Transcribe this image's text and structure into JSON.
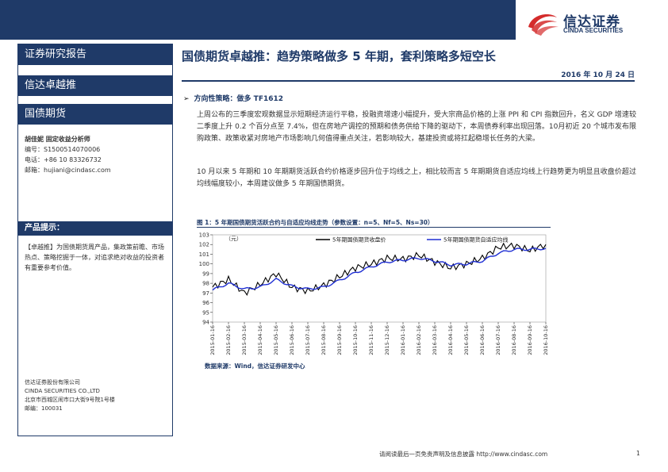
{
  "header": {
    "logo_cn": "信达证券",
    "logo_en": "CINDA SECURITIES",
    "colors": {
      "brand": "#1f3a68",
      "logo_red": "#d42b2b"
    }
  },
  "sidebar": {
    "report_type": "证券研究报告",
    "series": "信达卓越推",
    "category": "国债期货",
    "analyst_name": "胡佳妮  固定收益分析师",
    "analyst_id": "编号：S1500514070006",
    "analyst_phone": "电话：+86 10 83326732",
    "analyst_email": "邮箱：hujiani@cindasc.com",
    "tips_title": "产品提示：",
    "tips_body": "【卓越推】为国债期货周产品，集政策前瞻、市场热点、策略挖掘于一体，对追求绝对收益的投资者有重要参考价值。",
    "company_cn": "信达证券股份有限公司",
    "company_en": "CINDA SECURITIES CO.,LTD",
    "company_addr": "北京市西城区闹市口大街9号院1号楼",
    "company_zip": "邮编：100031"
  },
  "main": {
    "title": "国债期货卓越推：趋势策略做多 5 年期，套利策略多短空长",
    "date": "2016 年 10 月 24 日",
    "section_arrow": "➢",
    "section_title": "方向性策略：做多 TF1612",
    "para1": "上周公布的三季度宏观数据显示短期经济运行平稳，投融资增速小幅提升，受大宗商品价格的上涨 PPI 和 CPI 指数回升，名义 GDP 增速较二季度上升 0.2 个百分点至 7.4%，但在房地产调控的预期和债务供给下降的驱动下，本周债券利率出现回落。10月初近 20 个城市发布限购政策、政策收紧对房地产市场影响几何值得重点关注，若影响较大，基建投资或将扛起稳增长任务的大梁。",
    "para2": "10 月以来 5 年期和 10 年期期货活跃合约价格逐步回升位于均线之上，相比较而言 5 年期期货自适应均线上行趋势更为明显且收盘价超过均线幅度较小，本周建议做多 5 年期国债期货。",
    "figure_title": "图 1：5 年期国债期货活跃合约与自适应均线走势（参数设置：n=5、Nf=5、Ns=30）",
    "source": "数据来源：Wind，信达证券研发中心"
  },
  "footer": {
    "disclaimer": "请阅读最后一页免责声明及信息披露 http://www.cindasc.com",
    "page": "1"
  },
  "chart_data": {
    "type": "line",
    "ylabel": "（元）",
    "ylim": [
      94,
      103
    ],
    "yticks": [
      94,
      95,
      96,
      97,
      98,
      99,
      100,
      101,
      102,
      103
    ],
    "categories": [
      "2015-01-16",
      "2015-02-16",
      "2015-03-16",
      "2015-04-16",
      "2015-05-16",
      "2015-06-16",
      "2015-07-16",
      "2015-08-16",
      "2015-09-16",
      "2015-10-16",
      "2015-11-16",
      "2015-12-16",
      "2016-01-16",
      "2016-02-16",
      "2016-03-16",
      "2016-04-16",
      "2016-05-16",
      "2016-06-16",
      "2016-07-16",
      "2016-08-16",
      "2016-09-16",
      "2016-10-16"
    ],
    "legend_position": "top",
    "series": [
      {
        "name": "5年期国债期货收盘价",
        "color": "#000000",
        "values": [
          97.6,
          98.4,
          97.0,
          97.9,
          99.0,
          97.6,
          97.2,
          97.8,
          98.7,
          99.6,
          100.0,
          100.6,
          100.5,
          100.9,
          100.2,
          99.6,
          100.0,
          100.6,
          101.7,
          101.9,
          101.4,
          102.0
        ]
      },
      {
        "name": "5年期国债期货自适应均线",
        "color": "#1f2fd4",
        "values": [
          97.3,
          98.0,
          97.4,
          97.6,
          98.4,
          97.7,
          97.4,
          97.6,
          98.3,
          99.1,
          99.7,
          100.2,
          100.4,
          100.6,
          100.3,
          99.9,
          100.0,
          100.3,
          101.1,
          101.5,
          101.5,
          101.6
        ]
      }
    ]
  }
}
